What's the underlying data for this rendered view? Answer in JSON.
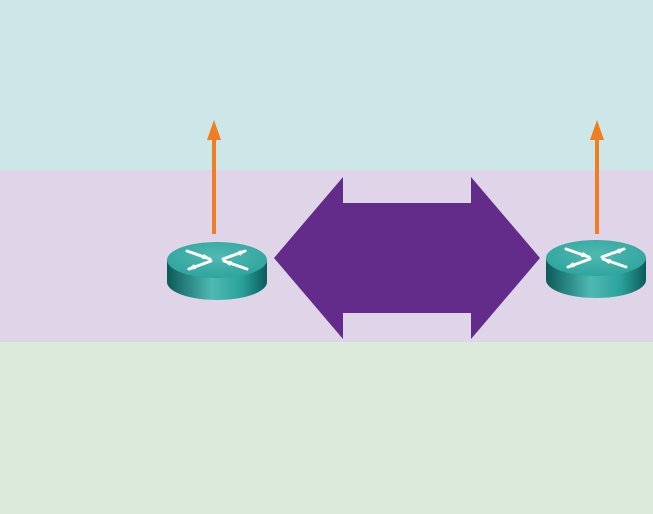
{
  "colors": {
    "band_top": "#cde7e8",
    "band_middle": "#e0d4e8",
    "band_bottom": "#dbeadb",
    "double_arrow": "#632b8a",
    "uplink_arrow": "#ef7d22",
    "router_top": "#2aa19b",
    "router_side_dark": "#0b5b5a",
    "router_side_light": "#4fb9b2",
    "router_glyph": "#ffffff"
  },
  "icons": {
    "left_router": "router-icon",
    "right_router": "router-icon",
    "exchange": "bidirectional-arrow-icon",
    "uplink": "up-arrow-icon"
  }
}
